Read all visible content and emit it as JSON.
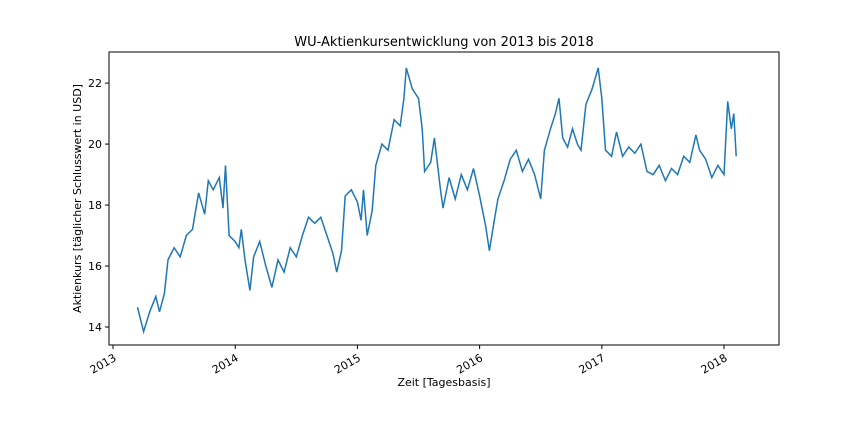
{
  "chart_data": {
    "type": "line",
    "title": "WU-Aktienkursentwicklung von 2013 bis 2018",
    "x_label": "Zeit [Tagesbasis]",
    "y_label": "Aktienkurs [täglicher Schlusswert in USD]",
    "x": [
      2013.2,
      2013.25,
      2013.3,
      2013.35,
      2013.38,
      2013.42,
      2013.45,
      2013.5,
      2013.55,
      2013.6,
      2013.65,
      2013.7,
      2013.75,
      2013.78,
      2013.82,
      2013.87,
      2013.9,
      2013.92,
      2013.95,
      2014.0,
      2014.03,
      2014.05,
      2014.08,
      2014.12,
      2014.15,
      2014.2,
      2014.25,
      2014.3,
      2014.35,
      2014.4,
      2014.45,
      2014.5,
      2014.55,
      2014.6,
      2014.65,
      2014.7,
      2014.75,
      2014.8,
      2014.83,
      2014.87,
      2014.9,
      2014.95,
      2015.0,
      2015.03,
      2015.05,
      2015.08,
      2015.12,
      2015.15,
      2015.2,
      2015.25,
      2015.3,
      2015.35,
      2015.38,
      2015.4,
      2015.45,
      2015.5,
      2015.53,
      2015.55,
      2015.6,
      2015.63,
      2015.65,
      2015.68,
      2015.7,
      2015.75,
      2015.8,
      2015.85,
      2015.9,
      2015.95,
      2016.0,
      2016.05,
      2016.08,
      2016.12,
      2016.15,
      2016.2,
      2016.25,
      2016.3,
      2016.35,
      2016.4,
      2016.45,
      2016.5,
      2016.53,
      2016.58,
      2016.62,
      2016.65,
      2016.68,
      2016.72,
      2016.76,
      2016.8,
      2016.83,
      2016.87,
      2016.92,
      2016.97,
      2017.0,
      2017.03,
      2017.08,
      2017.12,
      2017.17,
      2017.22,
      2017.27,
      2017.32,
      2017.37,
      2017.42,
      2017.47,
      2017.52,
      2017.57,
      2017.62,
      2017.67,
      2017.72,
      2017.77,
      2017.8,
      2017.85,
      2017.9,
      2017.95,
      2018.0,
      2018.03,
      2018.06,
      2018.08,
      2018.1
    ],
    "series": [
      {
        "color": "#1f77b4",
        "values": [
          14.65,
          13.85,
          14.5,
          15.0,
          14.5,
          15.1,
          16.2,
          16.6,
          16.3,
          17.0,
          17.2,
          18.4,
          17.7,
          18.8,
          18.5,
          18.9,
          17.9,
          19.3,
          17.0,
          16.8,
          16.6,
          17.2,
          16.2,
          15.2,
          16.3,
          16.8,
          16.0,
          15.3,
          16.2,
          15.8,
          16.6,
          16.3,
          17.0,
          17.6,
          17.4,
          17.6,
          17.0,
          16.4,
          15.8,
          16.5,
          18.3,
          18.5,
          18.1,
          17.5,
          18.5,
          17.0,
          17.8,
          19.3,
          20.0,
          19.8,
          20.8,
          20.6,
          21.5,
          22.5,
          21.8,
          21.5,
          20.5,
          19.1,
          19.4,
          20.2,
          19.5,
          18.5,
          17.9,
          18.9,
          18.2,
          19.0,
          18.5,
          19.2,
          18.3,
          17.3,
          16.5,
          17.5,
          18.2,
          18.8,
          19.5,
          19.8,
          19.1,
          19.5,
          19.0,
          18.2,
          19.8,
          20.5,
          21.0,
          21.5,
          20.2,
          19.9,
          20.5,
          20.0,
          19.8,
          21.3,
          21.8,
          22.5,
          21.5,
          19.8,
          19.6,
          20.4,
          19.6,
          19.9,
          19.7,
          20.0,
          19.1,
          19.0,
          19.3,
          18.8,
          19.2,
          19.0,
          19.6,
          19.4,
          20.3,
          19.8,
          19.5,
          18.9,
          19.3,
          19.0,
          21.4,
          20.5,
          21.0,
          19.6
        ]
      }
    ],
    "xlim": [
      2012.967,
      2018.45
    ],
    "xticks": [
      2013,
      2014,
      2015,
      2016,
      2017,
      2018
    ],
    "ylim": [
      13.41,
      23.02
    ],
    "yticks": [
      14,
      16,
      18,
      20,
      22
    ]
  }
}
